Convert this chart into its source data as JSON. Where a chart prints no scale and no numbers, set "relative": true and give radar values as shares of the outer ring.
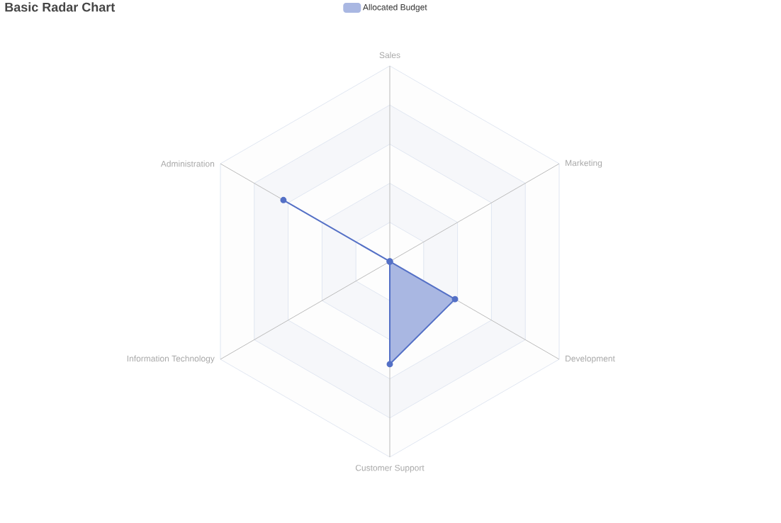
{
  "chart_data": {
    "type": "radar",
    "title": "Basic Radar Chart",
    "relative": true,
    "categories": [
      "Sales",
      "Marketing",
      "Development",
      "Customer Support",
      "Information Technology",
      "Administration"
    ],
    "series": [
      {
        "name": "Allocated Budget",
        "color": "#5470c6",
        "values": [
          0,
          0,
          0.385,
          0.525,
          0,
          0.628
        ]
      }
    ],
    "legend": "top",
    "marker": "circle",
    "line_style": "solid"
  }
}
